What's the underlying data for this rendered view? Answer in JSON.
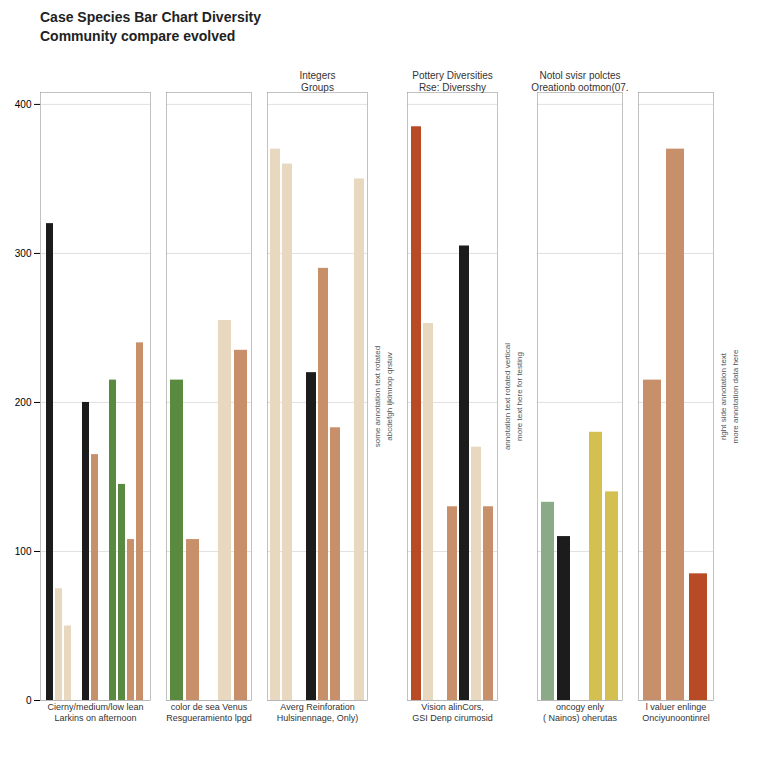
{
  "chart_data": [
    {
      "type": "bar",
      "title": "Case Species Bar Chart Diversity\nCommunity compare evolved",
      "xlabel": "Cierny/medium/low lean\nLarkins on afternoon",
      "categories": [
        null,
        null,
        null,
        null,
        null,
        null,
        null,
        null,
        null,
        null,
        null
      ],
      "values": [
        320,
        75,
        50,
        0,
        200,
        165,
        0,
        215,
        145,
        108,
        240
      ],
      "colors": [
        "#1c1c1c",
        "#e8d8c0",
        "#e8d8c0",
        "#ffffff",
        "#1c1c1c",
        "#c8906a",
        "#ffffff",
        "#5a8a40",
        "#5a8a40",
        "#c8906a",
        "#c8906a"
      ],
      "ylim": [
        0,
        408
      ],
      "yticks": [
        0,
        100,
        200,
        300,
        400
      ],
      "grid": true,
      "tick_labels": "y"
    },
    {
      "type": "bar",
      "xlabel": "color de sea Venus\nResgueramiento lpgd",
      "categories": [
        null,
        null,
        null,
        null,
        null
      ],
      "values": [
        215,
        108,
        0,
        255,
        235
      ],
      "colors": [
        "#5a8a40",
        "#c8906a",
        "#ffffff",
        "#e8d8c0",
        "#c8906a"
      ],
      "ylim": [
        0,
        408
      ],
      "yticks": [
        0,
        100,
        200,
        300,
        400
      ],
      "grid": true,
      "tick_labels": false
    },
    {
      "type": "bar",
      "title": "Integers\nGroups",
      "xlabel": "Averg Reinforation\nHulsinennage, Only)",
      "categories": [
        null,
        null,
        null,
        null,
        null,
        null,
        null,
        null
      ],
      "values": [
        370,
        360,
        0,
        220,
        290,
        183,
        0,
        350
      ],
      "colors": [
        "#e8d8c0",
        "#e8d8c0",
        "#ffffff",
        "#1c1c1c",
        "#c8906a",
        "#c8906a",
        "#ffffff",
        "#e8d8c0"
      ],
      "ylim": [
        0,
        408
      ],
      "yticks": [
        0,
        100,
        200,
        300,
        400
      ],
      "grid": true,
      "tick_labels": false,
      "annotations": [
        "some annotation text rotated",
        "abcdefgh ijklmnop qrstuv"
      ]
    },
    {
      "type": "bar",
      "title": "Pottery Diversities\nRse: Diversshy",
      "xlabel": "Vision alinCors,\nGSI Denp cirumosid",
      "categories": [
        null,
        null,
        null,
        null,
        null,
        null,
        null
      ],
      "values": [
        385,
        253,
        0,
        130,
        305,
        170,
        130
      ],
      "colors": [
        "#b84a25",
        "#e8d8c0",
        "#ffffff",
        "#c8906a",
        "#1c1c1c",
        "#e8d8c0",
        "#c8906a"
      ],
      "ylim": [
        0,
        408
      ],
      "yticks": [
        0,
        100,
        200,
        300,
        400
      ],
      "grid": true,
      "tick_labels": false,
      "annotations": [
        "annotation text rotated vertical",
        "more text here for testing"
      ]
    },
    {
      "type": "bar",
      "title": "Notol svisr polctes\nOreationb ootmon(07.",
      "xlabel": "oncogy enly\n( Nainos) oherutas",
      "categories": [
        null,
        null,
        null,
        null,
        null
      ],
      "values": [
        133,
        110,
        0,
        180,
        140
      ],
      "colors": [
        "#8aaa88",
        "#1c1c1c",
        "#ffffff",
        "#d4c050",
        "#d4c050"
      ],
      "ylim": [
        0,
        408
      ],
      "yticks": [
        0,
        100,
        200,
        300,
        400
      ],
      "grid": true,
      "tick_labels": false
    },
    {
      "type": "bar",
      "xlabel": "l valuer enlinge\nOnciyunoontinrel",
      "categories": [
        null,
        null,
        null
      ],
      "values": [
        215,
        370,
        85
      ],
      "colors": [
        "#c8906a",
        "#c8906a",
        "#b84a25"
      ],
      "ylim": [
        0,
        408
      ],
      "yticks": [
        0,
        100,
        200,
        300,
        400
      ],
      "grid": true,
      "tick_labels": false,
      "annotations": [
        "right side annotation text",
        "more annotation data here"
      ]
    }
  ]
}
